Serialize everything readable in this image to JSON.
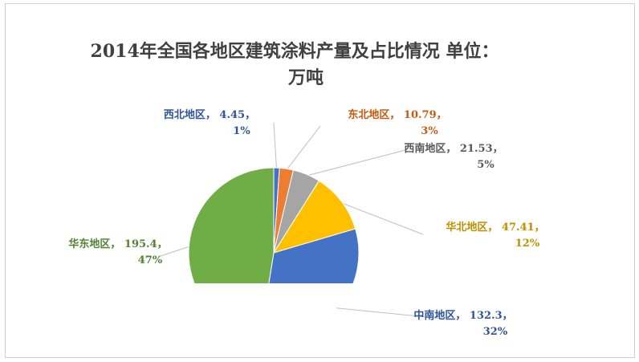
{
  "chart_data": {
    "type": "pie",
    "title": "2014年全国各地区建筑涂料产量及占比情况 单位：",
    "title_line2": "万吨",
    "slices": [
      {
        "label": "西北地区",
        "value": 4.45,
        "percent": "1%",
        "color": "#4472c4",
        "label_color": "#2f5597"
      },
      {
        "label": "东北地区",
        "value": 10.79,
        "percent": "3%",
        "color": "#ed7d31",
        "label_color": "#c55a11"
      },
      {
        "label": "西南地区",
        "value": 21.53,
        "percent": "5%",
        "color": "#a5a5a5",
        "label_color": "#595959"
      },
      {
        "label": "华北地区",
        "value": 47.41,
        "percent": "12%",
        "color": "#ffc000",
        "label_color": "#bf9000"
      },
      {
        "label": "中南地区",
        "value": 132.3,
        "percent": "32%",
        "color": "#4472c4",
        "label_color": "#2f5597"
      },
      {
        "label": "华东地区",
        "value": 195.4,
        "percent": "47%",
        "color": "#70ad47",
        "label_color": "#548235"
      }
    ]
  }
}
